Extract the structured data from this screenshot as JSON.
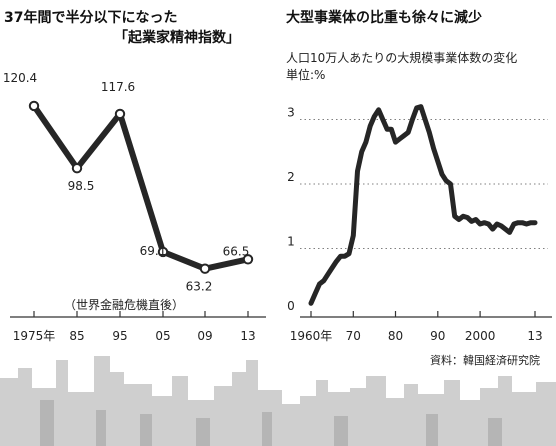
{
  "left_chart": {
    "title_line1": "37年間で半分以下になった",
    "title_line2": "「起業家精神指数」",
    "annotation": "（世界金融危機直後）"
  },
  "right_chart": {
    "title": "大型事業体の比重も徐々に減少",
    "subtitle": "人口10万人あたりの大規模事業体数の変化",
    "unit_label": "単位:%",
    "source": "資料：韓国経済研究院"
  },
  "chart_data": [
    {
      "type": "line",
      "title": "37年間で半分以下になった「起業家精神指数」",
      "x": [
        1975,
        1985,
        1995,
        2005,
        2009,
        2013
      ],
      "x_tick_labels": [
        "1975年",
        "85",
        "95",
        "05",
        "09",
        "13"
      ],
      "values": [
        120.4,
        98.5,
        117.6,
        69.1,
        63.2,
        66.5
      ],
      "data_labels": [
        "120.4",
        "98.5",
        "117.6",
        "69.1",
        "63.2",
        "66.5"
      ],
      "markers": "hollow-circle",
      "annotations": [
        {
          "x": 2009,
          "text": "（世界金融危機直後）"
        }
      ],
      "ylim": [
        55,
        126
      ],
      "grid": false,
      "line_color": "#262626"
    },
    {
      "type": "line",
      "title": "大型事業体の比重も徐々に減少",
      "subtitle": "人口10万人あたりの大規模事業体数の変化",
      "ylabel": "単位:%",
      "x_tick_values": [
        1960,
        1970,
        1980,
        1990,
        2000,
        2013
      ],
      "x_tick_labels": [
        "1960年",
        "70",
        "80",
        "90",
        "2000",
        "13"
      ],
      "y_ticks": [
        0,
        1,
        2,
        3
      ],
      "y_tick_labels": [
        "0",
        "1",
        "2",
        "3"
      ],
      "ylim": [
        0,
        3.3
      ],
      "grid": "horizontal dashed",
      "line_color": "#262626",
      "x": [
        1960,
        1961,
        1962,
        1963,
        1964,
        1965,
        1966,
        1967,
        1968,
        1969,
        1970,
        1971,
        1972,
        1973,
        1974,
        1975,
        1976,
        1977,
        1978,
        1979,
        1980,
        1981,
        1982,
        1983,
        1984,
        1985,
        1986,
        1987,
        1988,
        1989,
        1990,
        1991,
        1992,
        1993,
        1994,
        1995,
        1996,
        1997,
        1998,
        1999,
        2000,
        2001,
        2002,
        2003,
        2004,
        2005,
        2006,
        2007,
        2008,
        2009,
        2010,
        2011,
        2012,
        2013
      ],
      "values": [
        0.15,
        0.3,
        0.45,
        0.5,
        0.6,
        0.7,
        0.8,
        0.88,
        0.88,
        0.92,
        1.2,
        2.2,
        2.5,
        2.65,
        2.9,
        3.05,
        3.15,
        3.0,
        2.85,
        2.85,
        2.65,
        2.7,
        2.75,
        2.8,
        3.0,
        3.18,
        3.2,
        3.0,
        2.8,
        2.55,
        2.35,
        2.15,
        2.05,
        2.0,
        1.5,
        1.45,
        1.5,
        1.48,
        1.42,
        1.45,
        1.38,
        1.4,
        1.38,
        1.3,
        1.38,
        1.35,
        1.3,
        1.25,
        1.38,
        1.4,
        1.4,
        1.38,
        1.4,
        1.4
      ],
      "source": "資料：韓国経済研究院"
    }
  ]
}
